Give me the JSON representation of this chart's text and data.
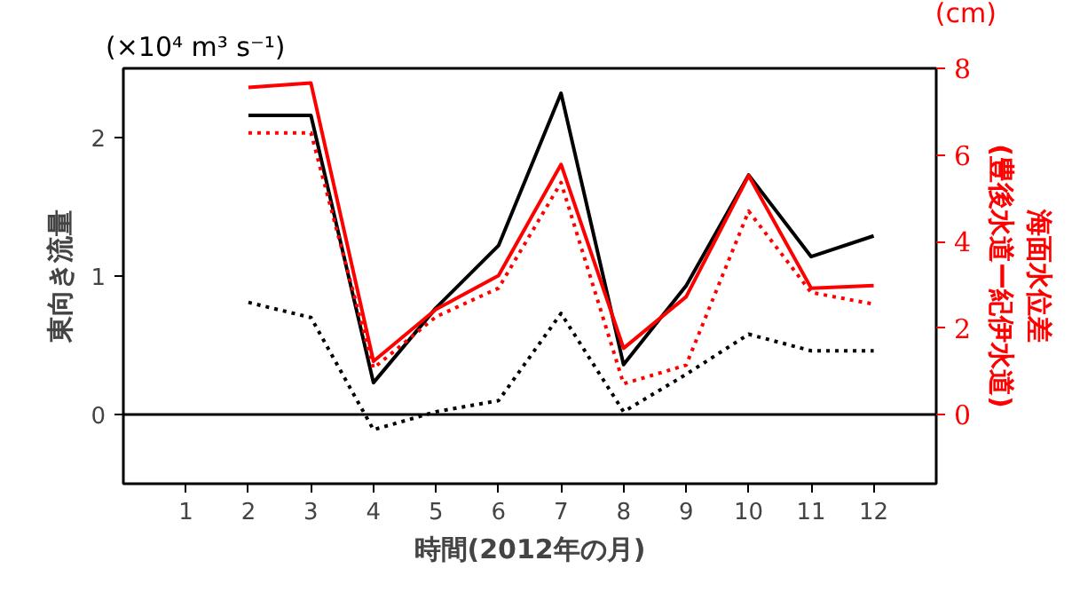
{
  "chart_data": {
    "type": "line",
    "xlabel": "時間(2012年の月)",
    "ylabel": "東向き流量",
    "y2label": "海面水位差\n(豊後水道ー紀伊水道)",
    "annotations": [
      "(×10⁴ m³ s⁻¹)",
      "(cm)"
    ],
    "x": [
      2,
      3,
      4,
      5,
      6,
      7,
      8,
      9,
      10,
      11,
      12
    ],
    "xlim": [
      0,
      13
    ],
    "xticks": [
      1,
      2,
      3,
      4,
      5,
      6,
      7,
      8,
      9,
      10,
      11,
      12
    ],
    "ylim": [
      -0.5,
      2.5
    ],
    "yticks": [
      0,
      1,
      2
    ],
    "y2lim": [
      -1.6,
      8
    ],
    "y2ticks": [
      0,
      2,
      4,
      6,
      8
    ],
    "ref_lines": [
      {
        "axis": "y",
        "value": 0,
        "color": "#000000",
        "line_style": "solid"
      }
    ],
    "series": [
      {
        "color": "#000000",
        "line_style": "solid",
        "values": [
          2.16,
          2.16,
          0.23,
          0.77,
          1.22,
          2.32,
          0.36,
          0.93,
          1.73,
          1.14,
          1.29
        ]
      },
      {
        "color": "#000000",
        "line_style": "dotted",
        "values": [
          0.81,
          0.7,
          -0.11,
          0.02,
          0.1,
          0.73,
          0.02,
          0.29,
          0.58,
          0.46,
          0.46
        ]
      },
      {
        "color": "#ff0000",
        "line_style": "solid",
        "axis": "y2",
        "values": [
          7.56,
          7.66,
          1.23,
          2.43,
          3.21,
          5.78,
          1.53,
          2.72,
          5.52,
          2.92,
          2.98
        ]
      },
      {
        "color": "#ff0000",
        "line_style": "dotted",
        "axis": "y2",
        "values": [
          6.51,
          6.51,
          1.07,
          2.26,
          2.92,
          5.36,
          0.71,
          1.14,
          4.7,
          2.82,
          2.55
        ]
      }
    ]
  }
}
